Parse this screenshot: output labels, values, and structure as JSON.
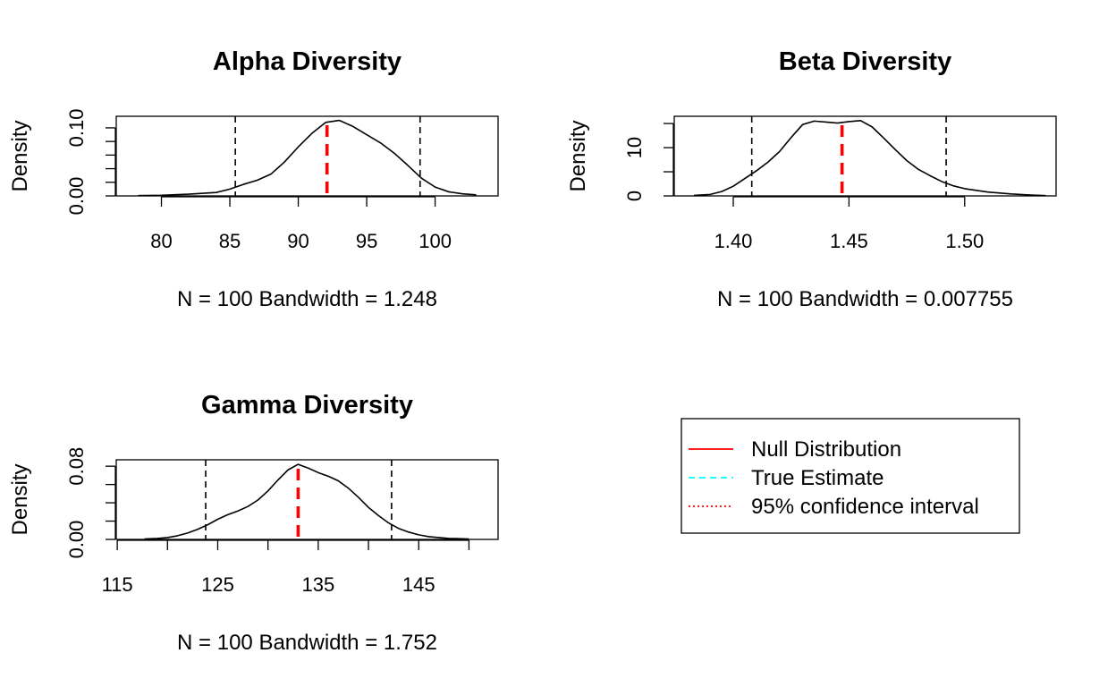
{
  "chart_data": [
    {
      "type": "line",
      "title": "Alpha Diversity",
      "xlabel": "N = 100   Bandwidth = 1.248",
      "ylabel": "Density",
      "xlim": [
        76.7,
        104.6
      ],
      "ylim": [
        0,
        0.117
      ],
      "xticks": [
        80,
        85,
        90,
        95,
        100
      ],
      "xtick_labels": [
        "80",
        "85",
        "90",
        "95",
        "100"
      ],
      "yticks": [
        0,
        0.02,
        0.04,
        0.06,
        0.08,
        0.1
      ],
      "ytick_labels": [
        "0.00",
        "",
        "",
        "",
        "",
        "0.10"
      ],
      "x": [
        78.3,
        80,
        82,
        84,
        85,
        86,
        87,
        88,
        89,
        90,
        91,
        92,
        93,
        94,
        95,
        96,
        97,
        98,
        99,
        100,
        101,
        102,
        103
      ],
      "y": [
        0.0005,
        0.001,
        0.0025,
        0.005,
        0.01,
        0.017,
        0.023,
        0.032,
        0.05,
        0.072,
        0.092,
        0.108,
        0.111,
        0.102,
        0.09,
        0.078,
        0.063,
        0.045,
        0.026,
        0.013,
        0.006,
        0.003,
        0.0015
      ],
      "ci": [
        85.4,
        98.9
      ],
      "observed": 92.1,
      "grid": false
    },
    {
      "type": "line",
      "title": "Beta Diversity",
      "xlabel": "N = 100   Bandwidth = 0.007755",
      "ylabel": "Density",
      "xlim": [
        1.3745,
        1.5395
      ],
      "ylim": [
        0,
        16.5
      ],
      "xticks": [
        1.4,
        1.45,
        1.5
      ],
      "xtick_labels": [
        "1.40",
        "1.45",
        "1.50"
      ],
      "yticks": [
        0,
        5,
        10,
        15
      ],
      "ytick_labels": [
        "0",
        "",
        "10",
        ""
      ],
      "x": [
        1.383,
        1.39,
        1.395,
        1.4,
        1.405,
        1.41,
        1.415,
        1.42,
        1.425,
        1.43,
        1.435,
        1.44,
        1.445,
        1.45,
        1.455,
        1.46,
        1.465,
        1.47,
        1.475,
        1.48,
        1.485,
        1.49,
        1.495,
        1.5,
        1.51,
        1.52,
        1.53,
        1.535
      ],
      "y": [
        0.1,
        0.3,
        0.9,
        2.0,
        3.6,
        5.2,
        7.0,
        9.2,
        12.1,
        14.8,
        15.5,
        15.3,
        15.1,
        15.4,
        15.6,
        14.3,
        12.0,
        9.6,
        7.3,
        5.5,
        4.2,
        3.0,
        2.1,
        1.5,
        0.8,
        0.4,
        0.15,
        0.05
      ],
      "ci": [
        1.408,
        1.492
      ],
      "observed": 1.447,
      "grid": false
    },
    {
      "type": "line",
      "title": "Gamma Diversity",
      "xlabel": "N = 100   Bandwidth = 1.752",
      "ylabel": "Density",
      "xlim": [
        114.9,
        152.9
      ],
      "ylim": [
        0,
        0.087
      ],
      "xticks": [
        115,
        120,
        125,
        130,
        135,
        140,
        145,
        150
      ],
      "xtick_labels": [
        "115",
        "",
        "125",
        "",
        "135",
        "",
        "145",
        ""
      ],
      "yticks": [
        0,
        0.02,
        0.04,
        0.06,
        0.08
      ],
      "ytick_labels": [
        "0.00",
        "",
        "",
        "",
        "0.08"
      ],
      "x": [
        117.7,
        119,
        120,
        121,
        122,
        123,
        124,
        125,
        126,
        127,
        128,
        129,
        130,
        131,
        132,
        133,
        134,
        135,
        136,
        137,
        138,
        139,
        140,
        141,
        142,
        143,
        144,
        145,
        146,
        147,
        148,
        149,
        150
      ],
      "y": [
        0.0005,
        0.001,
        0.002,
        0.004,
        0.007,
        0.011,
        0.016,
        0.022,
        0.027,
        0.031,
        0.036,
        0.043,
        0.053,
        0.065,
        0.076,
        0.082,
        0.078,
        0.073,
        0.069,
        0.064,
        0.056,
        0.046,
        0.035,
        0.026,
        0.018,
        0.012,
        0.008,
        0.005,
        0.003,
        0.002,
        0.001,
        0.0008,
        0.0005
      ],
      "ci": [
        123.8,
        142.3
      ],
      "observed": 133.0,
      "grid": false
    }
  ],
  "legend": {
    "placement": "bottom-right",
    "entries": [
      {
        "label": "Null Distribution",
        "color": "#ff0000",
        "style": "solid"
      },
      {
        "label": "True Estimate",
        "color": "#00ffff",
        "style": "dashed"
      },
      {
        "label": "95% confidence interval",
        "color": "#ff0000",
        "style": "dotted"
      }
    ]
  }
}
